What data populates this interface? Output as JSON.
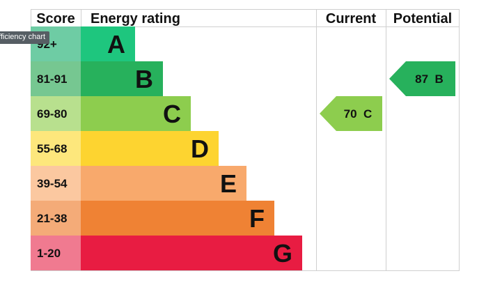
{
  "chart_data": {
    "type": "table",
    "columns": {
      "score": "Score",
      "rating": "Energy rating",
      "current": "Current",
      "potential": "Potential"
    },
    "bands": [
      {
        "letter": "A",
        "range": "92+",
        "color": "#1ec67e",
        "score_color": "#6ecca4"
      },
      {
        "letter": "B",
        "range": "81-91",
        "color": "#27b15c",
        "score_color": "#76c791"
      },
      {
        "letter": "C",
        "range": "69-80",
        "color": "#8dcd4e",
        "score_color": "#b8e08e"
      },
      {
        "letter": "D",
        "range": "55-68",
        "color": "#fdd430",
        "score_color": "#fde77c"
      },
      {
        "letter": "E",
        "range": "39-54",
        "color": "#f8a96c",
        "score_color": "#fbc8a0"
      },
      {
        "letter": "F",
        "range": "21-38",
        "color": "#ef8234",
        "score_color": "#f4ab78"
      },
      {
        "letter": "G",
        "range": "1-20",
        "color": "#e81c42",
        "score_color": "#f07a90"
      }
    ],
    "current": {
      "value": 70,
      "band": "C",
      "label": "70  C",
      "color": "#8dcd4e"
    },
    "potential": {
      "value": 87,
      "band": "B",
      "label": "87  B",
      "color": "#27b15c"
    }
  },
  "tooltip": "fficiency chart"
}
